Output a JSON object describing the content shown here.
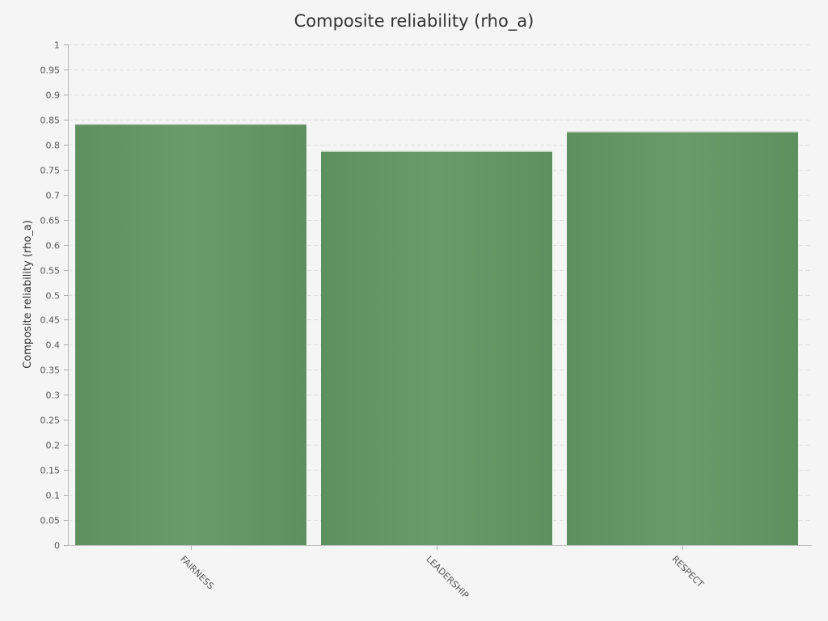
{
  "chart_data": {
    "type": "bar",
    "title": "Composite reliability (rho_a)",
    "xlabel": "",
    "ylabel": "Composite reliability (rho_a)",
    "categories": [
      "FAIRNESS",
      "LEADERSHIP",
      "RESPECT"
    ],
    "values": [
      0.841,
      0.787,
      0.826
    ],
    "ylim": [
      0,
      1
    ],
    "yticks": [
      "0",
      "0.05",
      "0.1",
      "0.15",
      "0.2",
      "0.25",
      "0.3",
      "0.35",
      "0.4",
      "0.45",
      "0.5",
      "0.55",
      "0.6",
      "0.65",
      "0.7",
      "0.75",
      "0.8",
      "0.85",
      "0.9",
      "0.95",
      "1"
    ],
    "grid": true,
    "bar_color": "#649765",
    "legend": "none"
  }
}
